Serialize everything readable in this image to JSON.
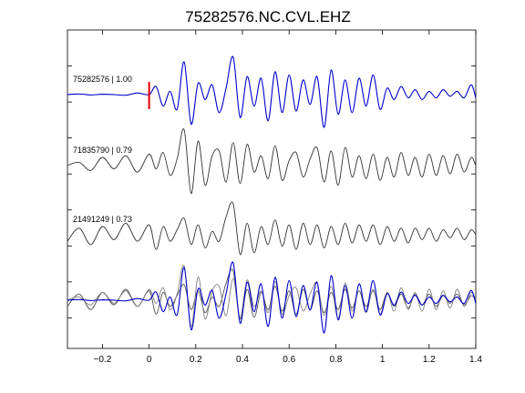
{
  "chart_data": {
    "type": "line",
    "title": "75282576.NC.CVL.EHZ",
    "xlabel": "",
    "ylabel": "",
    "xlim": [
      -0.35,
      1.4
    ],
    "x_ticks": [
      -0.2,
      0,
      0.2,
      0.4,
      0.6,
      0.8,
      1.0,
      1.2,
      1.4
    ],
    "x_tick_labels": [
      "−0.2",
      "0",
      "0.2",
      "0.4",
      "0.6",
      "0.8",
      "1",
      "1.2",
      "1.4"
    ],
    "y_ticks_count": 8,
    "pick_marker": {
      "x": 0,
      "color": "#e00000"
    },
    "colors": {
      "reference": "#0000cc",
      "other": "#333333",
      "overlay_gray": "#808080",
      "axes": "#000000"
    },
    "series": [
      {
        "name": "75282576 | 1.00",
        "label_text": "75282576 | 1.00",
        "color": "#0000cc",
        "row": 1,
        "x": [
          -0.35,
          -0.3,
          -0.25,
          -0.2,
          -0.15,
          -0.1,
          -0.05,
          0.0,
          0.03,
          0.06,
          0.09,
          0.12,
          0.15,
          0.18,
          0.21,
          0.24,
          0.27,
          0.3,
          0.33,
          0.36,
          0.39,
          0.42,
          0.45,
          0.48,
          0.51,
          0.54,
          0.57,
          0.6,
          0.63,
          0.66,
          0.69,
          0.72,
          0.75,
          0.78,
          0.81,
          0.84,
          0.87,
          0.9,
          0.93,
          0.96,
          0.99,
          1.02,
          1.05,
          1.08,
          1.11,
          1.14,
          1.17,
          1.2,
          1.23,
          1.26,
          1.29,
          1.32,
          1.35,
          1.38,
          1.4
        ],
        "values": [
          0.0,
          0.02,
          -0.01,
          0.01,
          0.0,
          -0.02,
          0.05,
          0.0,
          0.25,
          -0.35,
          0.1,
          -0.45,
          1.0,
          -0.9,
          0.35,
          -0.15,
          0.3,
          -0.55,
          0.2,
          1.15,
          -0.7,
          0.55,
          -0.35,
          0.5,
          -0.8,
          0.7,
          -0.55,
          0.6,
          -0.5,
          0.45,
          -0.3,
          0.55,
          -1.0,
          0.75,
          -0.6,
          0.45,
          -0.55,
          0.5,
          -0.35,
          0.6,
          -0.45,
          0.2,
          -0.15,
          0.25,
          -0.1,
          0.15,
          -0.15,
          0.1,
          -0.1,
          0.15,
          -0.05,
          0.1,
          -0.1,
          0.3,
          -0.1
        ]
      },
      {
        "name": "71835790 | 0.79",
        "label_text": "71835790 | 0.79",
        "color": "#333333",
        "row": 2,
        "x": [
          -0.35,
          -0.3,
          -0.25,
          -0.2,
          -0.15,
          -0.1,
          -0.05,
          0.0,
          0.03,
          0.06,
          0.09,
          0.12,
          0.15,
          0.18,
          0.21,
          0.24,
          0.27,
          0.3,
          0.33,
          0.36,
          0.39,
          0.42,
          0.45,
          0.48,
          0.51,
          0.54,
          0.57,
          0.6,
          0.63,
          0.66,
          0.69,
          0.72,
          0.75,
          0.78,
          0.81,
          0.84,
          0.87,
          0.9,
          0.93,
          0.96,
          0.99,
          1.02,
          1.05,
          1.08,
          1.11,
          1.14,
          1.17,
          1.2,
          1.23,
          1.26,
          1.29,
          1.32,
          1.35,
          1.38,
          1.4
        ],
        "values": [
          0.0,
          0.1,
          -0.15,
          0.25,
          -0.1,
          0.3,
          -0.2,
          0.35,
          -0.1,
          0.4,
          -0.3,
          0.2,
          1.1,
          -0.85,
          0.75,
          -0.6,
          0.3,
          0.45,
          -0.5,
          0.7,
          -0.55,
          0.65,
          -0.2,
          0.3,
          -0.4,
          0.6,
          -0.45,
          0.15,
          0.4,
          -0.35,
          0.2,
          0.55,
          -0.5,
          0.45,
          -0.6,
          0.55,
          -0.35,
          0.3,
          -0.4,
          0.35,
          -0.45,
          0.25,
          -0.35,
          0.4,
          -0.3,
          0.25,
          -0.35,
          0.35,
          -0.3,
          0.3,
          -0.25,
          0.35,
          -0.2,
          0.25,
          0.0
        ]
      },
      {
        "name": "21491249 | 0.73",
        "label_text": "21491249 | 0.73",
        "color": "#333333",
        "row": 3,
        "x": [
          -0.35,
          -0.3,
          -0.25,
          -0.2,
          -0.15,
          -0.1,
          -0.05,
          0.0,
          0.03,
          0.06,
          0.09,
          0.12,
          0.15,
          0.18,
          0.21,
          0.24,
          0.27,
          0.3,
          0.33,
          0.36,
          0.39,
          0.42,
          0.45,
          0.48,
          0.51,
          0.54,
          0.57,
          0.6,
          0.63,
          0.66,
          0.69,
          0.72,
          0.75,
          0.78,
          0.81,
          0.84,
          0.87,
          0.9,
          0.93,
          0.96,
          0.99,
          1.02,
          1.05,
          1.08,
          1.11,
          1.14,
          1.17,
          1.2,
          1.23,
          1.26,
          1.29,
          1.32,
          1.35,
          1.38,
          1.4
        ],
        "values": [
          -0.2,
          0.2,
          -0.3,
          0.25,
          -0.15,
          0.35,
          -0.2,
          0.3,
          -0.45,
          0.25,
          -0.2,
          0.15,
          0.5,
          -0.3,
          0.3,
          -0.4,
          0.1,
          -0.2,
          0.55,
          0.95,
          -0.6,
          0.35,
          -0.55,
          0.25,
          -0.3,
          0.45,
          -0.35,
          0.3,
          -0.45,
          0.35,
          -0.3,
          0.3,
          -0.4,
          0.25,
          -0.3,
          0.35,
          -0.25,
          0.3,
          -0.2,
          0.3,
          -0.3,
          0.25,
          -0.2,
          0.2,
          -0.25,
          0.2,
          -0.15,
          0.2,
          -0.2,
          0.15,
          -0.1,
          0.2,
          -0.15,
          0.15,
          0.0
        ]
      }
    ],
    "overlay": {
      "row": 4,
      "series_colors": [
        "#0000cc",
        "#808080",
        "#505050"
      ],
      "description_series": [
        "75282576 | 1.00",
        "71835790 | 0.79",
        "21491249 | 0.73"
      ]
    }
  }
}
